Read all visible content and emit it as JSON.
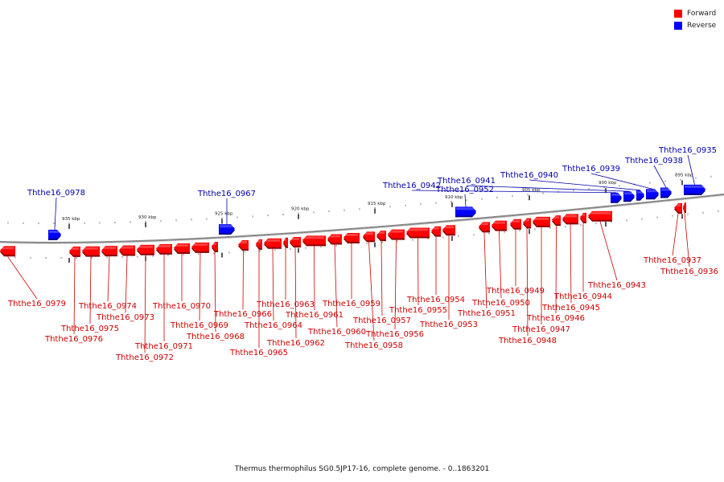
{
  "colors": {
    "forward": "#ff0000",
    "reverse": "#0000ff",
    "backbone": "#888888",
    "forward_label": "#cc0000",
    "reverse_label": "#0000aa"
  },
  "legend": [
    {
      "label": "Forward",
      "color": "#ff0000"
    },
    {
      "label": "Reverse",
      "color": "#0000ff"
    }
  ],
  "caption": "Thermus thermophilus SG0.5JP17-16, complete genome. - 0..1863201",
  "scale_ticks": [
    {
      "kbp": 935,
      "label": "935 kbp"
    },
    {
      "kbp": 930,
      "label": "930 kbp"
    },
    {
      "kbp": 925,
      "label": "925 kbp"
    },
    {
      "kbp": 920,
      "label": "920 kbp"
    },
    {
      "kbp": 915,
      "label": "915 kbp"
    },
    {
      "kbp": 910,
      "label": "910 kbp"
    },
    {
      "kbp": 905,
      "label": "905 kbp"
    },
    {
      "kbp": 900,
      "label": "900 kbp"
    },
    {
      "kbp": 895,
      "label": "895 kbp"
    }
  ],
  "genes": [
    {
      "id": "Ththe16_0979",
      "strand": "forward"
    },
    {
      "id": "Ththe16_0978",
      "strand": "reverse"
    },
    {
      "id": "Ththe16_0976",
      "strand": "forward"
    },
    {
      "id": "Ththe16_0975",
      "strand": "forward"
    },
    {
      "id": "Ththe16_0974",
      "strand": "forward"
    },
    {
      "id": "Ththe16_0973",
      "strand": "forward"
    },
    {
      "id": "Ththe16_0972",
      "strand": "forward"
    },
    {
      "id": "Ththe16_0971",
      "strand": "forward"
    },
    {
      "id": "Ththe16_0970",
      "strand": "forward"
    },
    {
      "id": "Ththe16_0969",
      "strand": "forward"
    },
    {
      "id": "Ththe16_0968",
      "strand": "forward"
    },
    {
      "id": "Ththe16_0967",
      "strand": "reverse"
    },
    {
      "id": "Ththe16_0966",
      "strand": "forward"
    },
    {
      "id": "Ththe16_0965",
      "strand": "forward"
    },
    {
      "id": "Ththe16_0964",
      "strand": "forward"
    },
    {
      "id": "Ththe16_0963",
      "strand": "forward"
    },
    {
      "id": "Ththe16_0962",
      "strand": "forward"
    },
    {
      "id": "Ththe16_0961",
      "strand": "forward"
    },
    {
      "id": "Ththe16_0960",
      "strand": "forward"
    },
    {
      "id": "Ththe16_0959",
      "strand": "forward"
    },
    {
      "id": "Ththe16_0958",
      "strand": "forward"
    },
    {
      "id": "Ththe16_0957",
      "strand": "forward"
    },
    {
      "id": "Ththe16_0956",
      "strand": "forward"
    },
    {
      "id": "Ththe16_0955",
      "strand": "forward"
    },
    {
      "id": "Ththe16_0954",
      "strand": "forward"
    },
    {
      "id": "Ththe16_0953",
      "strand": "forward"
    },
    {
      "id": "Ththe16_0952",
      "strand": "reverse"
    },
    {
      "id": "Ththe16_0951",
      "strand": "forward"
    },
    {
      "id": "Ththe16_0950",
      "strand": "forward"
    },
    {
      "id": "Ththe16_0949",
      "strand": "forward"
    },
    {
      "id": "Ththe16_0948",
      "strand": "forward"
    },
    {
      "id": "Ththe16_0947",
      "strand": "forward"
    },
    {
      "id": "Ththe16_0946",
      "strand": "forward"
    },
    {
      "id": "Ththe16_0945",
      "strand": "forward"
    },
    {
      "id": "Ththe16_0944",
      "strand": "forward"
    },
    {
      "id": "Ththe16_0943",
      "strand": "forward"
    },
    {
      "id": "Ththe16_0942",
      "strand": "reverse"
    },
    {
      "id": "Ththe16_0941",
      "strand": "reverse"
    },
    {
      "id": "Ththe16_0940",
      "strand": "reverse"
    },
    {
      "id": "Ththe16_0939",
      "strand": "reverse"
    },
    {
      "id": "Ththe16_0938",
      "strand": "reverse"
    },
    {
      "id": "Ththe16_0937",
      "strand": "forward"
    },
    {
      "id": "Ththe16_0936",
      "strand": "forward"
    },
    {
      "id": "Ththe16_0935",
      "strand": "reverse"
    }
  ]
}
